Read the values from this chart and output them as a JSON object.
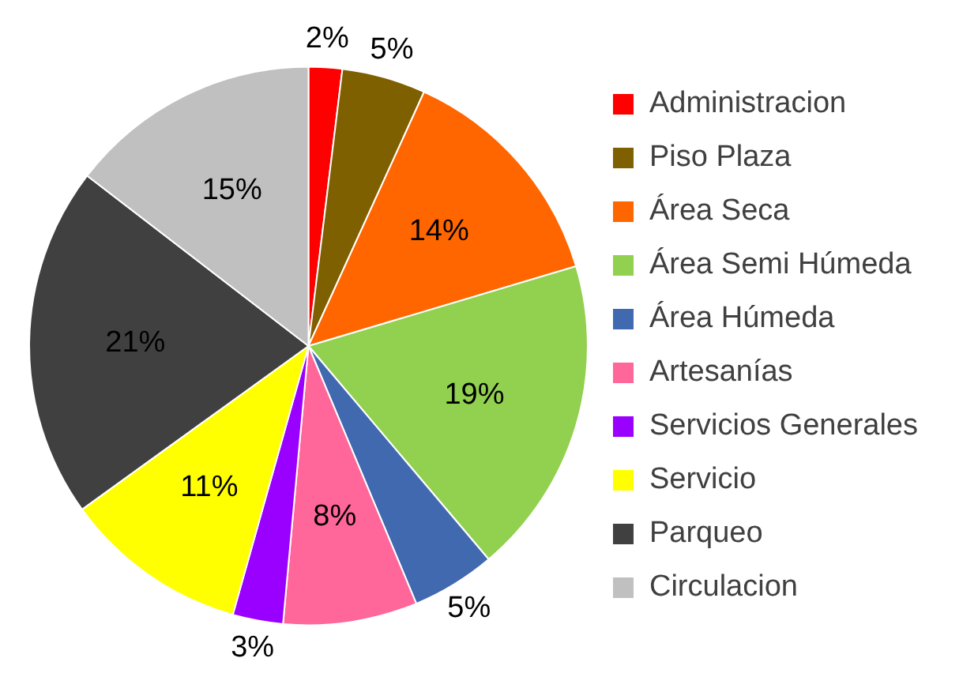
{
  "chart_data": {
    "type": "pie",
    "categories": [
      "Administracion",
      "Piso Plaza",
      "Área Seca",
      "Área Semi Húmeda",
      "Área Húmeda",
      "Artesanías",
      "Servicios Generales",
      "Servicio",
      "Parqueo",
      "Circulacion"
    ],
    "values": [
      2,
      5,
      14,
      19,
      5,
      8,
      3,
      11,
      21,
      15
    ],
    "colors": [
      "#ff0000",
      "#7f6000",
      "#ff6600",
      "#92d050",
      "#4169b0",
      "#ff6699",
      "#9900ff",
      "#ffff00",
      "#404040",
      "#c0c0c0"
    ],
    "value_labels": [
      "2%",
      "5%",
      "14%",
      "19%",
      "5%",
      "8%",
      "3%",
      "11%",
      "21%",
      "15%"
    ],
    "legend": "right"
  }
}
